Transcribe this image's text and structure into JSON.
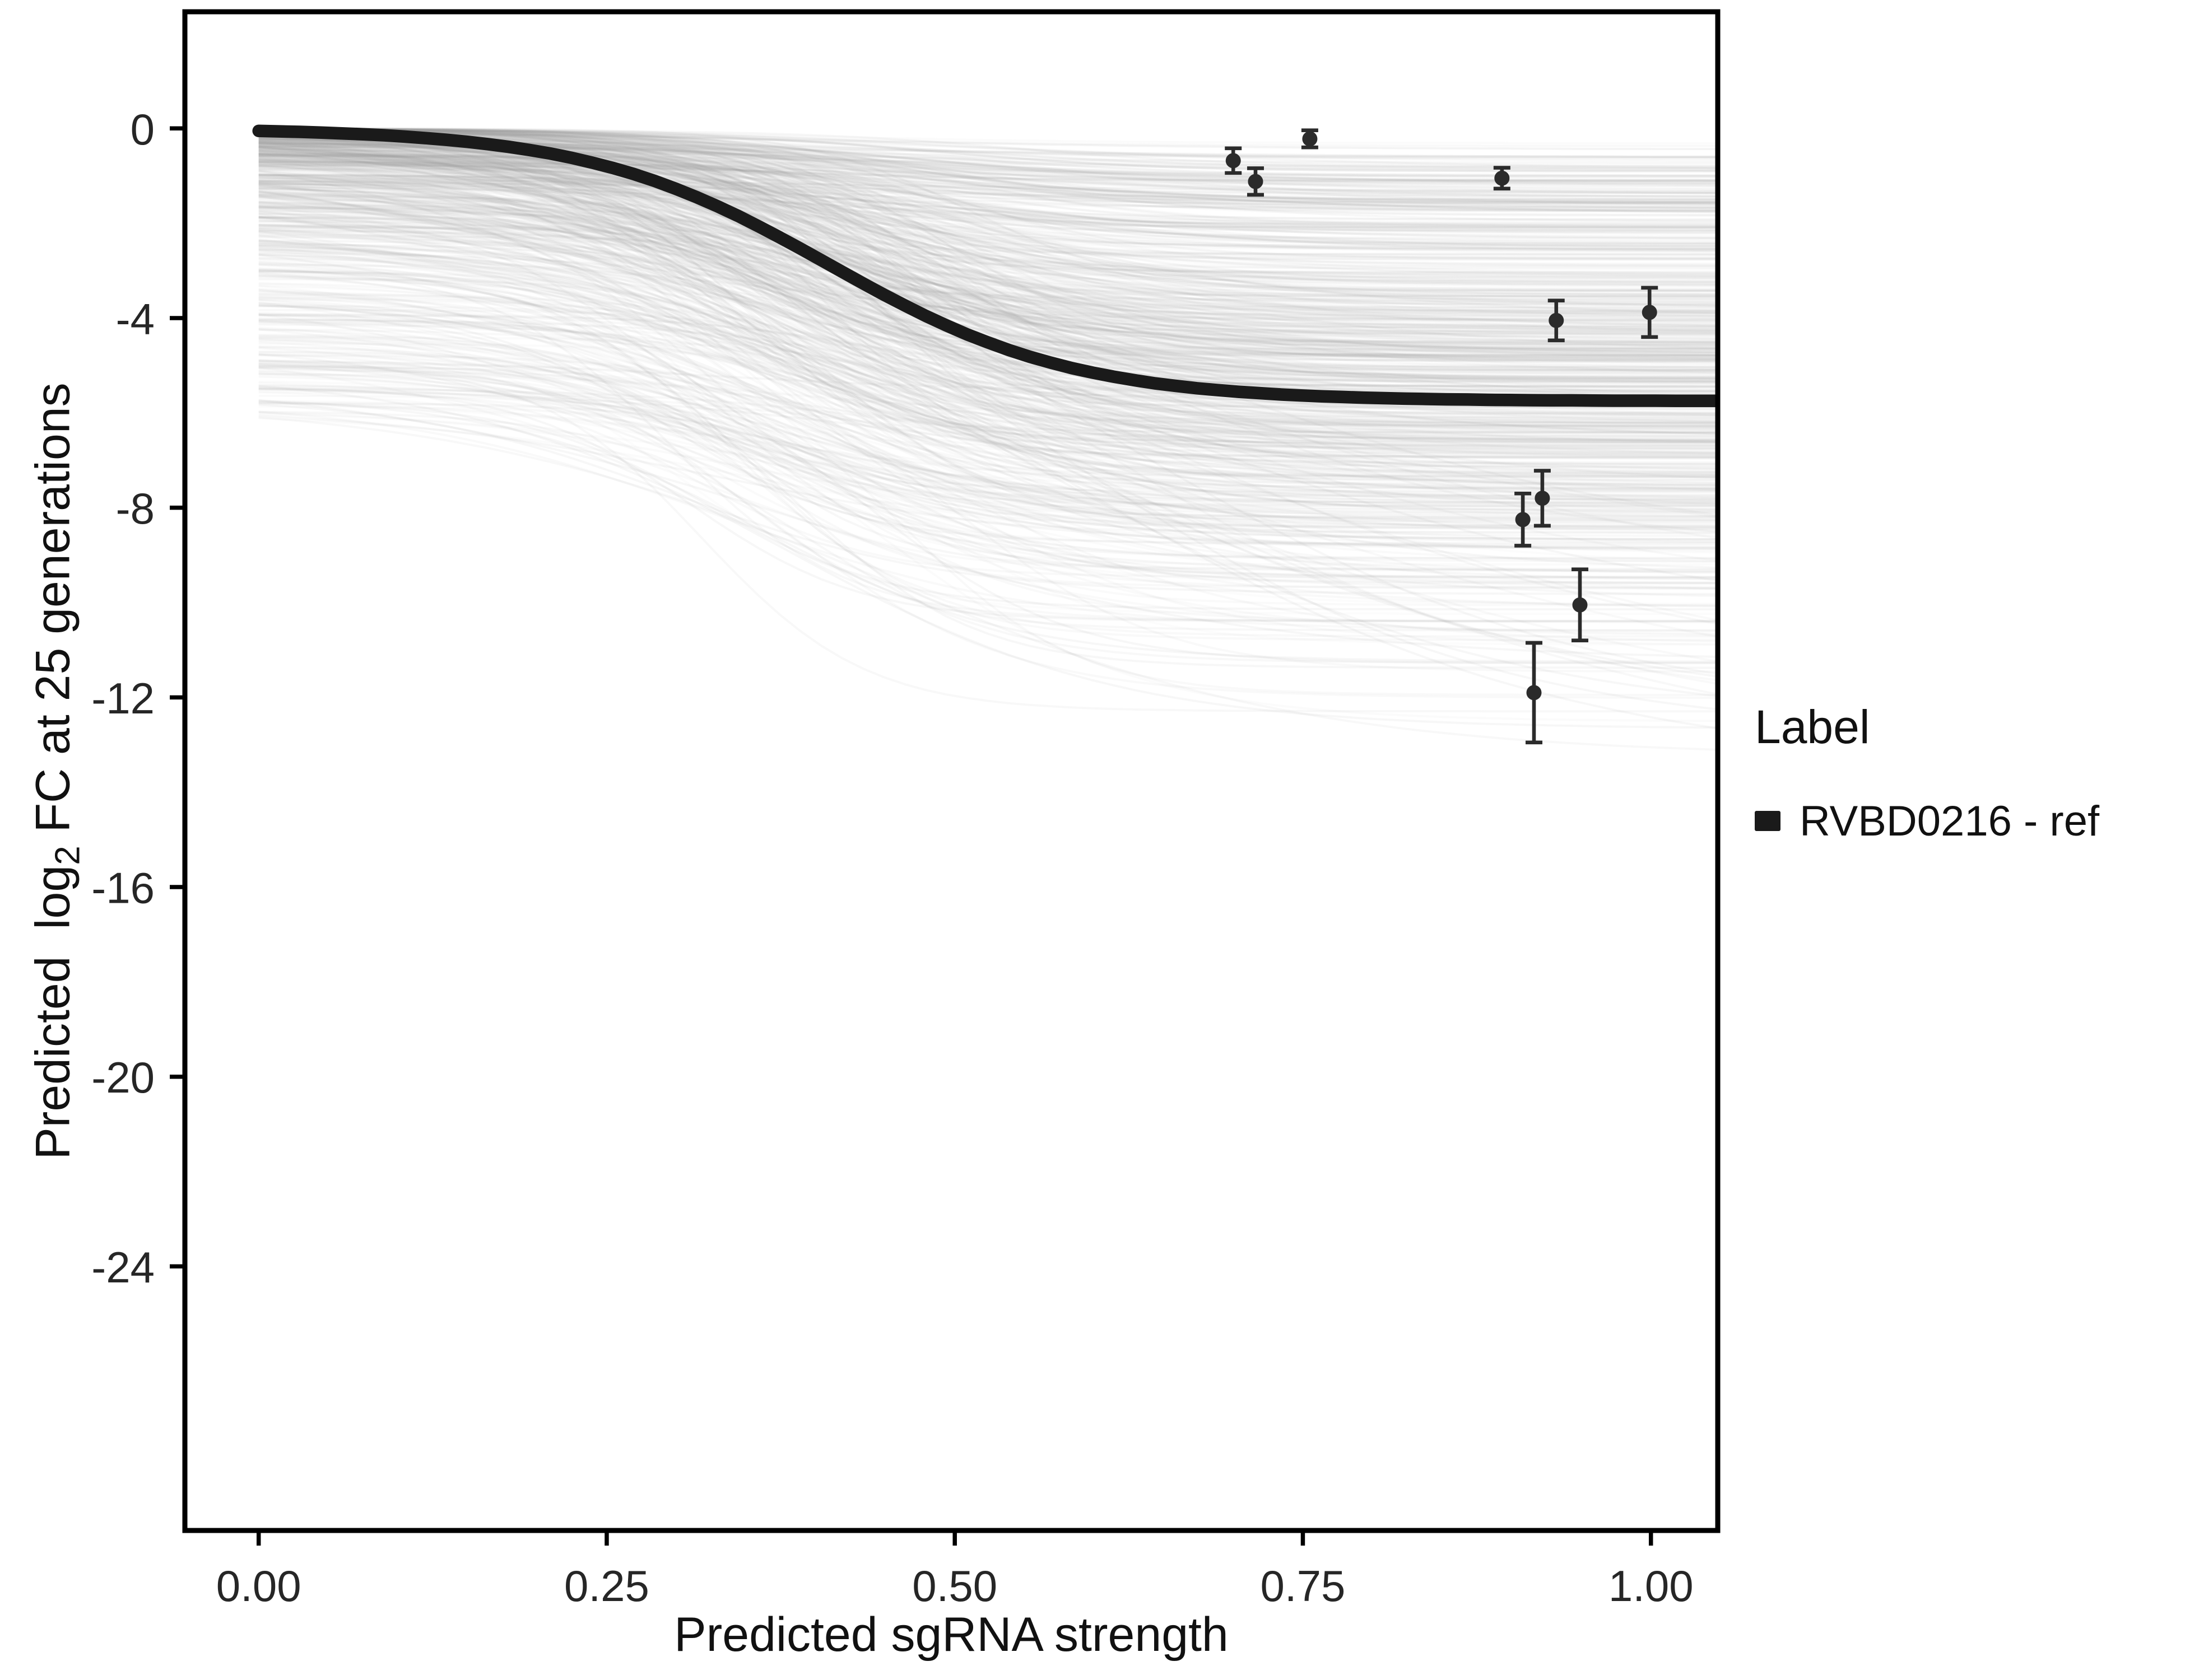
{
  "figure": {
    "background": "#ffffff"
  },
  "chart_data": {
    "type": "line",
    "title": "",
    "xlabel": "Predicted sgRNA strength",
    "ylabel": "Predicted log2 FC at 25 generations",
    "ylabel_parts": {
      "prefix": "Predicted  log",
      "sub": "2",
      "suffix": " FC at 25 generations"
    },
    "grid": false,
    "panel_border": true,
    "xlim": [
      -0.053,
      1.048
    ],
    "ylim": [
      -29.57,
      2.46
    ],
    "x_ticks": [
      {
        "value": 0.0,
        "label": "0.00"
      },
      {
        "value": 0.25,
        "label": "0.25"
      },
      {
        "value": 0.5,
        "label": "0.50"
      },
      {
        "value": 0.75,
        "label": "0.75"
      },
      {
        "value": 1.0,
        "label": "1.00"
      }
    ],
    "y_ticks": [
      {
        "value": 0,
        "label": "0"
      },
      {
        "value": -4,
        "label": "-4"
      },
      {
        "value": -8,
        "label": "-8"
      },
      {
        "value": -12,
        "label": "-12"
      },
      {
        "value": -16,
        "label": "-16"
      },
      {
        "value": -20,
        "label": "-20"
      },
      {
        "value": -24,
        "label": "-24"
      }
    ],
    "reference_curve": {
      "name": "RVBD0216 - ref",
      "model": "logistic",
      "plateau": -5.75,
      "midpoint": 0.41,
      "steepness": 11.4,
      "start_value": 0,
      "color": "#1a1a1a",
      "width": 7.5
    },
    "ensemble": {
      "description": "posterior sample sigmoid fits (semi-transparent)",
      "color": "#9e9e9e",
      "width": 1.3,
      "count": 620,
      "flat_count": 90,
      "deep_count": 18,
      "seed": 20816,
      "value_range_at_x0": [
        0,
        -6
      ],
      "value_range_at_x1": [
        0,
        -12
      ]
    },
    "points": [
      {
        "x": 0.7,
        "y": -0.68,
        "err": 0.26
      },
      {
        "x": 0.716,
        "y": -1.12,
        "err": 0.28
      },
      {
        "x": 0.755,
        "y": -0.22,
        "err": 0.18
      },
      {
        "x": 0.893,
        "y": -1.05,
        "err": 0.22
      },
      {
        "x": 0.932,
        "y": -4.05,
        "err": 0.42
      },
      {
        "x": 0.999,
        "y": -3.88,
        "err": 0.52
      },
      {
        "x": 0.908,
        "y": -8.25,
        "err": 0.55
      },
      {
        "x": 0.922,
        "y": -7.8,
        "err": 0.58
      },
      {
        "x": 0.949,
        "y": -10.05,
        "err": 0.75
      },
      {
        "x": 0.916,
        "y": -11.9,
        "err": 1.05
      }
    ],
    "legend": {
      "title": "Label",
      "position": "right",
      "entries": [
        {
          "label": "RVBD0216 - ref",
          "color": "#1a1a1a"
        }
      ]
    },
    "colors": {
      "axis": "#000000",
      "tick_label": "#262626",
      "points": "#2b2b2b"
    }
  }
}
